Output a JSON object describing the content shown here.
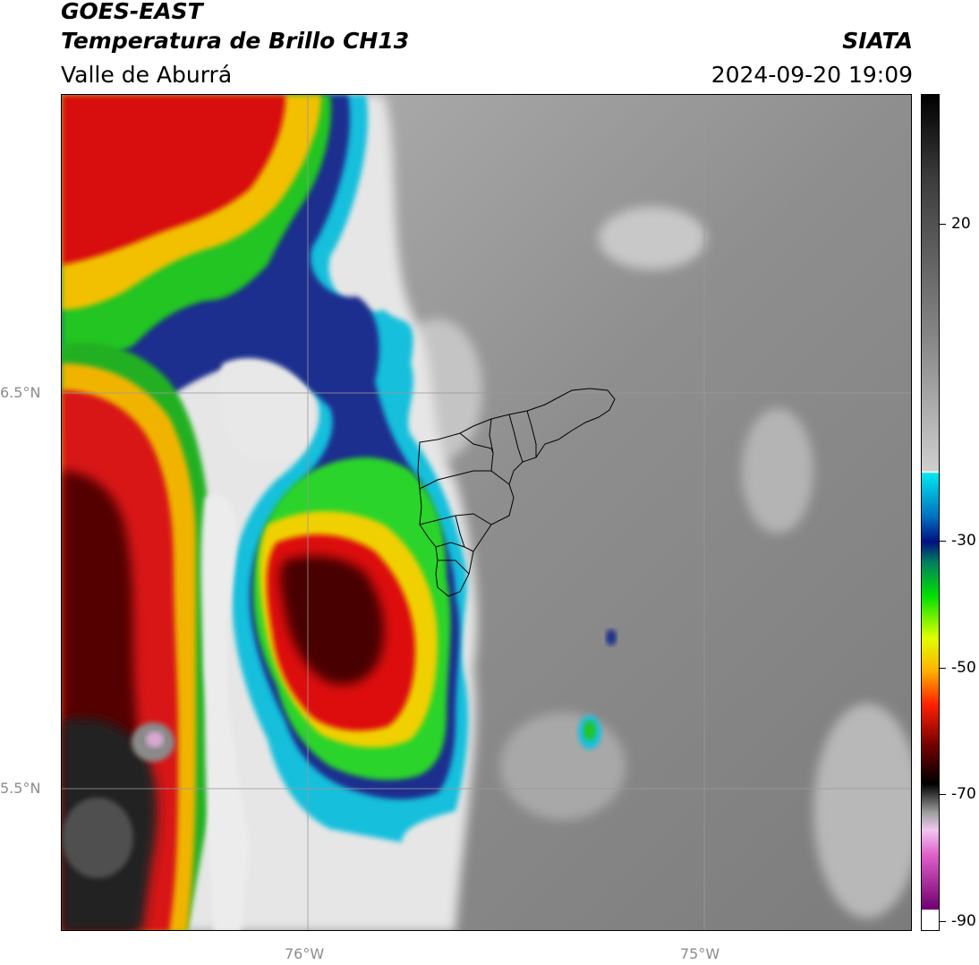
{
  "header": {
    "satellite": "GOES-EAST",
    "product": "Temperatura de Brillo CH13",
    "region": "Valle de Aburrá",
    "agency": "SIATA",
    "datetime": "2024-09-20 19:09"
  },
  "map": {
    "lat_labels": [
      "6.5°N",
      "5.5°N"
    ],
    "lon_labels": [
      "76°W",
      "75°W"
    ],
    "gridlines": true,
    "boundaries": "Valle de Aburrá municipalities"
  },
  "colorbar": {
    "ticks": [
      "20",
      "-30",
      "-50",
      "-70",
      "-90"
    ],
    "colors": {
      "warm_grey": "#7a7a7a",
      "light": "#f0f0f0",
      "cyan": "#19c8e0",
      "blue": "#1a2d8c",
      "green": "#1fd01f",
      "yellow": "#f5e800",
      "orange": "#f58a00",
      "red": "#e00000",
      "dark_red": "#3a0000",
      "black": "#101010",
      "magenta": "#e060c8",
      "purple": "#7a0078"
    }
  }
}
